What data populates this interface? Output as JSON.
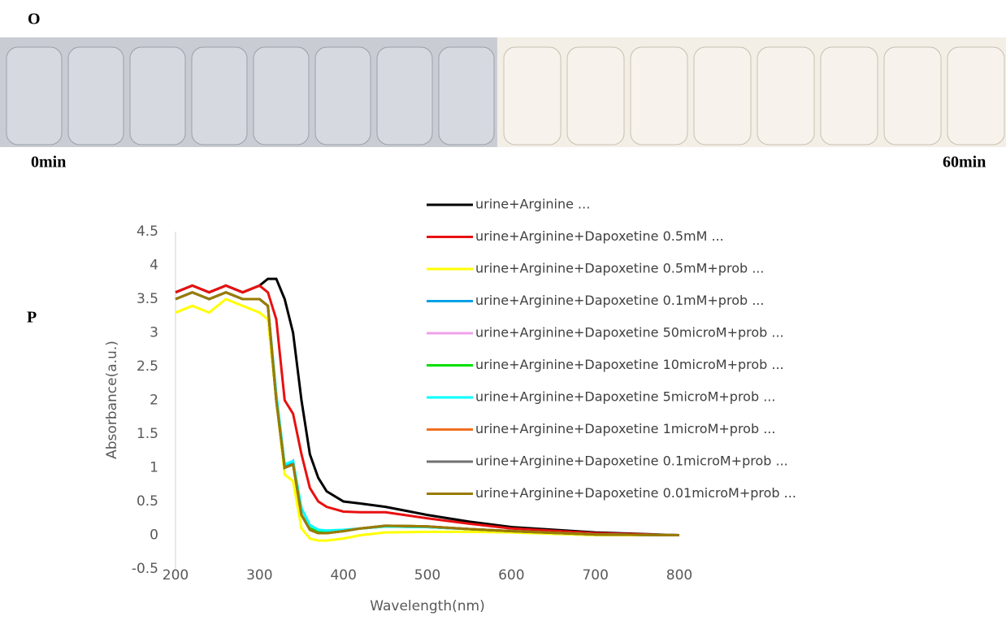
{
  "panel_labels": [
    "O",
    "P"
  ],
  "photo_labels": [
    "0min",
    "60min"
  ],
  "chart_data": {
    "type": "line",
    "x_label": "Wavelength(nm)",
    "y_label": "Absorbance(a.u.)",
    "x": [
      200,
      220,
      240,
      260,
      280,
      300,
      310,
      320,
      330,
      340,
      350,
      360,
      370,
      380,
      400,
      420,
      450,
      500,
      550,
      600,
      700,
      800
    ],
    "xlim": [
      200,
      800
    ],
    "xticks": [
      200,
      300,
      400,
      500,
      600,
      700,
      800
    ],
    "ylim": [
      -0.5,
      4.5
    ],
    "yticks": [
      -0.5,
      0,
      0.5,
      1,
      1.5,
      2,
      2.5,
      3,
      3.5,
      4,
      4.5
    ],
    "series": [
      {
        "name": "urine+Arginine ...",
        "color": "#000000",
        "values": [
          3.6,
          3.7,
          3.6,
          3.7,
          3.6,
          3.7,
          3.8,
          3.8,
          3.5,
          3.0,
          2.0,
          1.2,
          0.85,
          0.65,
          0.5,
          0.47,
          0.42,
          0.3,
          0.2,
          0.12,
          0.04,
          0.0
        ]
      },
      {
        "name": "urine+Arginine+Dapoxetine 0.5mM ...",
        "color": "#e81010",
        "values": [
          3.6,
          3.7,
          3.6,
          3.7,
          3.6,
          3.7,
          3.6,
          3.2,
          2.0,
          1.8,
          1.2,
          0.7,
          0.5,
          0.42,
          0.35,
          0.34,
          0.34,
          0.25,
          0.17,
          0.1,
          0.03,
          0.0
        ]
      },
      {
        "name": "urine+Arginine+Dapoxetine 0.5mM+prob ...",
        "color": "#ffff00",
        "values": [
          3.3,
          3.4,
          3.3,
          3.5,
          3.4,
          3.3,
          3.2,
          2.0,
          0.9,
          0.8,
          0.1,
          -0.05,
          -0.08,
          -0.08,
          -0.05,
          0.0,
          0.04,
          0.05,
          0.05,
          0.04,
          0.0,
          0.0
        ]
      },
      {
        "name": "urine+Arginine+Dapoxetine 0.1mM+prob ...",
        "color": "#00a0e6",
        "values": [
          3.5,
          3.6,
          3.5,
          3.6,
          3.5,
          3.5,
          3.4,
          2.0,
          1.0,
          1.1,
          0.3,
          0.1,
          0.05,
          0.04,
          0.06,
          0.1,
          0.13,
          0.12,
          0.09,
          0.06,
          0.01,
          0.0
        ]
      },
      {
        "name": "urine+Arginine+Dapoxetine 50microM+prob ...",
        "color": "#f0a0e8",
        "values": [
          3.5,
          3.6,
          3.5,
          3.6,
          3.5,
          3.5,
          3.4,
          2.0,
          1.0,
          1.05,
          0.3,
          0.1,
          0.05,
          0.04,
          0.06,
          0.1,
          0.13,
          0.12,
          0.09,
          0.06,
          0.01,
          0.0
        ]
      },
      {
        "name": "urine+Arginine+Dapoxetine 10microM+prob ...",
        "color": "#00e000",
        "values": [
          3.5,
          3.6,
          3.5,
          3.6,
          3.5,
          3.5,
          3.4,
          2.0,
          1.0,
          1.05,
          0.3,
          0.1,
          0.05,
          0.04,
          0.06,
          0.1,
          0.13,
          0.12,
          0.09,
          0.06,
          0.01,
          0.0
        ]
      },
      {
        "name": "urine+Arginine+Dapoxetine 5microM+prob ...",
        "color": "#00ffff",
        "values": [
          3.5,
          3.6,
          3.5,
          3.6,
          3.5,
          3.5,
          3.4,
          2.1,
          1.05,
          1.1,
          0.4,
          0.15,
          0.08,
          0.07,
          0.08,
          0.1,
          0.13,
          0.12,
          0.09,
          0.06,
          0.01,
          0.0
        ]
      },
      {
        "name": "urine+Arginine+Dapoxetine 1microM+prob ...",
        "color": "#f07020",
        "values": [
          3.5,
          3.6,
          3.5,
          3.6,
          3.5,
          3.5,
          3.4,
          2.0,
          1.0,
          1.05,
          0.3,
          0.08,
          0.03,
          0.03,
          0.06,
          0.1,
          0.14,
          0.13,
          0.09,
          0.06,
          0.01,
          0.0
        ]
      },
      {
        "name": "urine+Arginine+Dapoxetine 0.1microM+prob ...",
        "color": "#707070",
        "values": [
          3.5,
          3.6,
          3.5,
          3.6,
          3.5,
          3.5,
          3.4,
          2.0,
          1.0,
          1.05,
          0.3,
          0.08,
          0.03,
          0.03,
          0.06,
          0.1,
          0.14,
          0.13,
          0.09,
          0.06,
          0.01,
          0.0
        ]
      },
      {
        "name": "urine+Arginine+Dapoxetine 0.01microM+prob ...",
        "color": "#9a7a00",
        "values": [
          3.5,
          3.6,
          3.5,
          3.6,
          3.5,
          3.5,
          3.4,
          2.0,
          1.0,
          1.05,
          0.3,
          0.08,
          0.03,
          0.03,
          0.06,
          0.1,
          0.14,
          0.13,
          0.09,
          0.06,
          0.01,
          0.0
        ]
      }
    ]
  }
}
